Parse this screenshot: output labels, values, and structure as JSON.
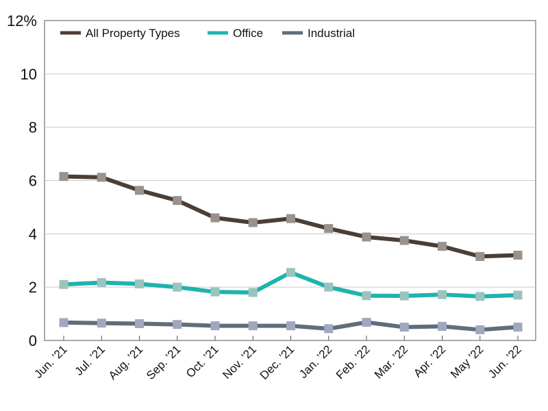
{
  "chart_data": {
    "type": "line",
    "categories": [
      "Jun. ’21",
      "Jul. ’21",
      "Aug. ’21",
      "Sep. ’21",
      "Oct. ’21",
      "Nov. ’21",
      "Dec. ’21",
      "Jan. ’22",
      "Feb. ’22",
      "Mar. ’22",
      "Apr. ’22",
      "May ’22",
      "Jun. ’22"
    ],
    "y_ticks": [
      "0",
      "2",
      "4",
      "6",
      "8",
      "10",
      "12%"
    ],
    "ylim": [
      0,
      12
    ],
    "grid": "horizontal",
    "legend_position": "top-left",
    "series": [
      {
        "name": "All Property Types",
        "color": "#4a3e36",
        "marker_color": "#9a928a",
        "values": [
          6.15,
          6.12,
          5.63,
          5.25,
          4.6,
          4.42,
          4.57,
          4.2,
          3.88,
          3.75,
          3.53,
          3.15,
          3.2
        ]
      },
      {
        "name": "Office",
        "color": "#1fb3ad",
        "marker_color": "#9bc4bf",
        "values": [
          2.1,
          2.17,
          2.12,
          2.0,
          1.82,
          1.8,
          2.55,
          2.0,
          1.68,
          1.67,
          1.72,
          1.65,
          1.7
        ]
      },
      {
        "name": "Industrial",
        "color": "#5e6e7a",
        "marker_color": "#a0a8c0",
        "values": [
          0.67,
          0.65,
          0.63,
          0.6,
          0.55,
          0.55,
          0.55,
          0.44,
          0.68,
          0.5,
          0.53,
          0.4,
          0.5
        ]
      }
    ]
  }
}
